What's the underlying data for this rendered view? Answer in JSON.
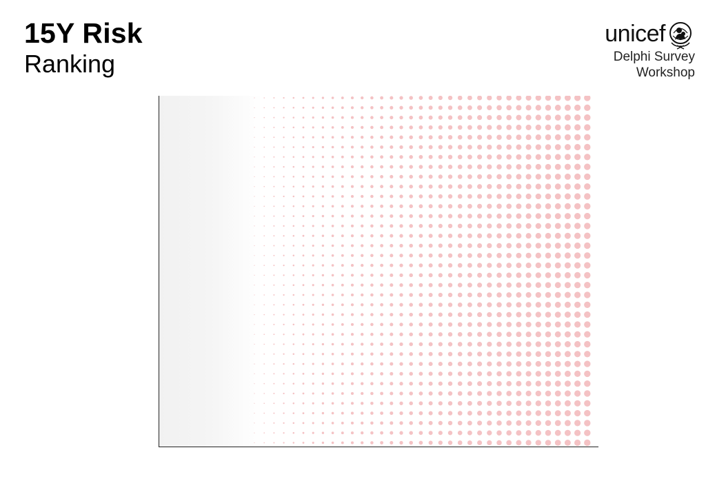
{
  "header": {
    "title": "15Y Risk",
    "subtitle": "Ranking"
  },
  "brand": {
    "logo_text": "unicef",
    "emblem_icon": "unicef-emblem-icon",
    "caption_line1": "Delphi Survey",
    "caption_line2": "Workshop"
  },
  "colors": {
    "dot": "#f4c2c4",
    "axis": "#222222",
    "fade_left": "#f1f1f1"
  }
}
